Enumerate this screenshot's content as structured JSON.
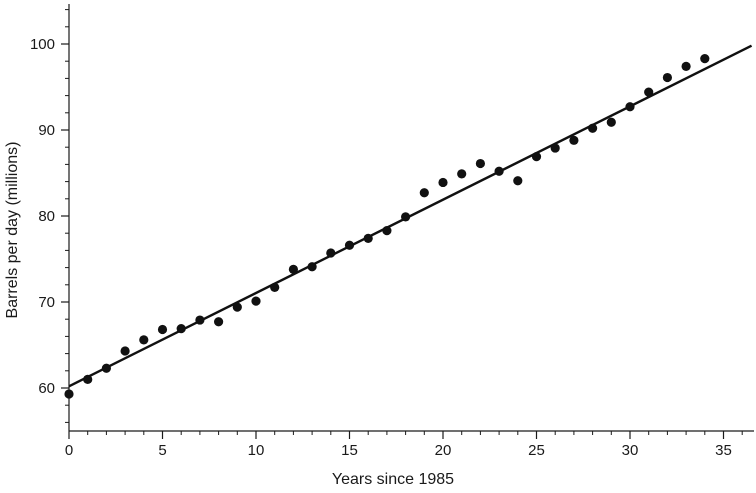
{
  "chart_data": {
    "type": "scatter",
    "title": "",
    "xlabel": "Years since 1985",
    "ylabel": "Barrels per day (millions)",
    "xlim": [
      0,
      37
    ],
    "ylim": [
      55,
      106
    ],
    "grid": false,
    "x_ticks": [
      0,
      5,
      10,
      15,
      20,
      25,
      30,
      35
    ],
    "y_ticks": [
      60,
      70,
      80,
      90,
      100
    ],
    "points": [
      {
        "x": 0,
        "y": 59.3
      },
      {
        "x": 1,
        "y": 61.0
      },
      {
        "x": 2,
        "y": 62.3
      },
      {
        "x": 3,
        "y": 64.3
      },
      {
        "x": 4,
        "y": 65.6
      },
      {
        "x": 5,
        "y": 66.8
      },
      {
        "x": 6,
        "y": 66.9
      },
      {
        "x": 7,
        "y": 67.9
      },
      {
        "x": 8,
        "y": 67.7
      },
      {
        "x": 9,
        "y": 69.4
      },
      {
        "x": 10,
        "y": 70.1
      },
      {
        "x": 11,
        "y": 71.7
      },
      {
        "x": 12,
        "y": 73.8
      },
      {
        "x": 13,
        "y": 74.1
      },
      {
        "x": 14,
        "y": 75.7
      },
      {
        "x": 15,
        "y": 76.6
      },
      {
        "x": 16,
        "y": 77.4
      },
      {
        "x": 17,
        "y": 78.3
      },
      {
        "x": 18,
        "y": 79.9
      },
      {
        "x": 19,
        "y": 82.7
      },
      {
        "x": 20,
        "y": 83.9
      },
      {
        "x": 21,
        "y": 84.9
      },
      {
        "x": 22,
        "y": 86.1
      },
      {
        "x": 23,
        "y": 85.2
      },
      {
        "x": 24,
        "y": 84.1
      },
      {
        "x": 25,
        "y": 86.9
      },
      {
        "x": 26,
        "y": 87.9
      },
      {
        "x": 27,
        "y": 88.8
      },
      {
        "x": 28,
        "y": 90.2
      },
      {
        "x": 29,
        "y": 90.9
      },
      {
        "x": 30,
        "y": 92.7
      },
      {
        "x": 31,
        "y": 94.4
      },
      {
        "x": 32,
        "y": 96.1
      },
      {
        "x": 33,
        "y": 97.4
      },
      {
        "x": 34,
        "y": 98.3
      }
    ],
    "trend_line": {
      "x0": 0,
      "y0": 60.2,
      "x1": 36.5,
      "y1": 99.8
    }
  }
}
